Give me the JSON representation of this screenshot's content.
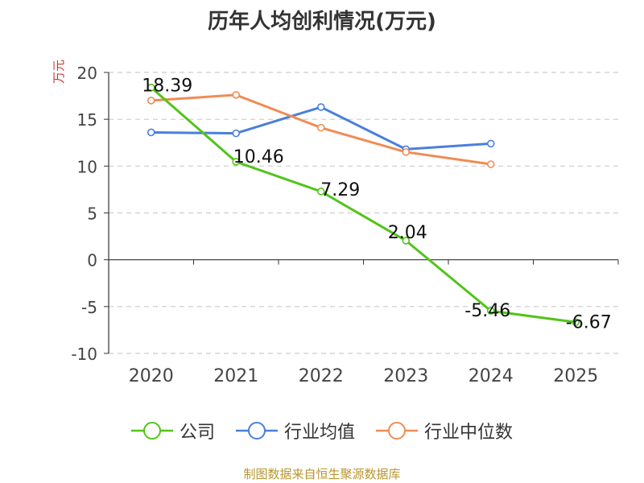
{
  "chart_data": {
    "type": "line",
    "title": "历年人均创利情况(万元)",
    "ylabel": "万元",
    "xlabel": "",
    "categories": [
      "2020",
      "2021",
      "2022",
      "2023",
      "2024",
      "2025"
    ],
    "ylim": [
      -10,
      20
    ],
    "yticks": [
      20,
      15,
      10,
      5,
      0,
      -5,
      -10
    ],
    "grid": "horizontal-dashed",
    "legend_position": "bottom",
    "series": [
      {
        "name": "公司",
        "color": "#52c41a",
        "values": [
          18.39,
          10.46,
          7.29,
          2.04,
          -5.46,
          -6.67
        ],
        "data_labels": [
          "18.39",
          "10.46",
          "7.29",
          "2.04",
          "-5.46",
          "-6.67"
        ]
      },
      {
        "name": "行业均值",
        "color": "#4a7fdc",
        "values": [
          13.6,
          13.5,
          16.3,
          11.8,
          12.4,
          null
        ]
      },
      {
        "name": "行业中位数",
        "color": "#f08c55",
        "values": [
          17.0,
          17.6,
          14.1,
          11.5,
          10.2,
          null
        ]
      }
    ]
  },
  "footer": {
    "source": "制图数据来自恒生聚源数据库"
  }
}
